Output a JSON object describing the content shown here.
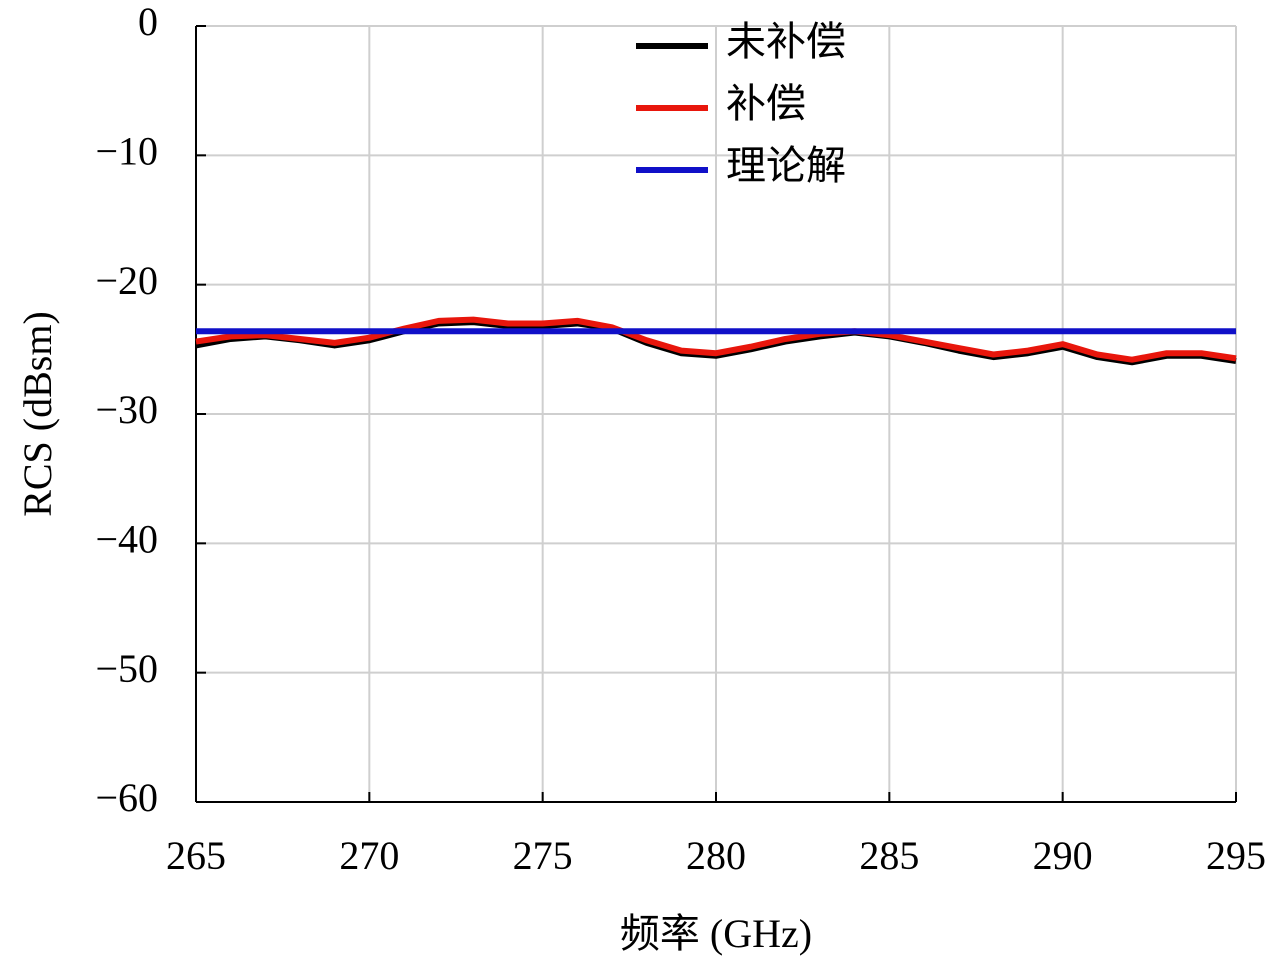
{
  "chart_data": {
    "type": "line",
    "xlabel": "频率 (GHz)",
    "ylabel": "RCS (dBsm)",
    "x": [
      265,
      266,
      267,
      268,
      269,
      270,
      271,
      272,
      273,
      274,
      275,
      276,
      277,
      278,
      279,
      280,
      281,
      282,
      283,
      284,
      285,
      286,
      287,
      288,
      289,
      290,
      291,
      292,
      293,
      294,
      295
    ],
    "series": [
      {
        "name": "未补偿",
        "color": "#000000",
        "values": [
          -24.7,
          -24.2,
          -24.0,
          -24.3,
          -24.7,
          -24.3,
          -23.6,
          -23.0,
          -22.9,
          -23.2,
          -23.2,
          -23.0,
          -23.4,
          -24.5,
          -25.3,
          -25.5,
          -25.0,
          -24.4,
          -24.0,
          -23.7,
          -24.0,
          -24.5,
          -25.1,
          -25.6,
          -25.3,
          -24.8,
          -25.6,
          -26.0,
          -25.5,
          -25.5,
          -25.9
        ]
      },
      {
        "name": "补偿",
        "color": "#e8160c",
        "values": [
          -24.4,
          -24.0,
          -23.9,
          -24.2,
          -24.5,
          -24.1,
          -23.4,
          -22.8,
          -22.7,
          -23.0,
          -23.0,
          -22.8,
          -23.3,
          -24.3,
          -25.1,
          -25.3,
          -24.8,
          -24.2,
          -23.8,
          -23.6,
          -23.9,
          -24.4,
          -24.9,
          -25.4,
          -25.1,
          -24.6,
          -25.4,
          -25.8,
          -25.3,
          -25.3,
          -25.7
        ]
      },
      {
        "name": "理论解",
        "color": "#1010c8",
        "values": [
          -23.6,
          -23.6,
          -23.6,
          -23.6,
          -23.6,
          -23.6,
          -23.6,
          -23.6,
          -23.6,
          -23.6,
          -23.6,
          -23.6,
          -23.6,
          -23.6,
          -23.6,
          -23.6,
          -23.6,
          -23.6,
          -23.6,
          -23.6,
          -23.6,
          -23.6,
          -23.6,
          -23.6,
          -23.6,
          -23.6,
          -23.6,
          -23.6,
          -23.6,
          -23.6,
          -23.6
        ]
      }
    ],
    "xlim": [
      265,
      295
    ],
    "xticks": [
      265,
      270,
      275,
      280,
      285,
      290,
      295
    ],
    "ylim": [
      -60,
      0
    ],
    "yticks": [
      {
        "value": -60,
        "label": "−60"
      },
      {
        "value": -50,
        "label": "−50"
      },
      {
        "value": -40,
        "label": "−40"
      },
      {
        "value": -30,
        "label": "−30"
      },
      {
        "value": -20,
        "label": "−20"
      },
      {
        "value": -10,
        "label": "−10"
      },
      0
    ],
    "grid": true,
    "legend": "top"
  }
}
